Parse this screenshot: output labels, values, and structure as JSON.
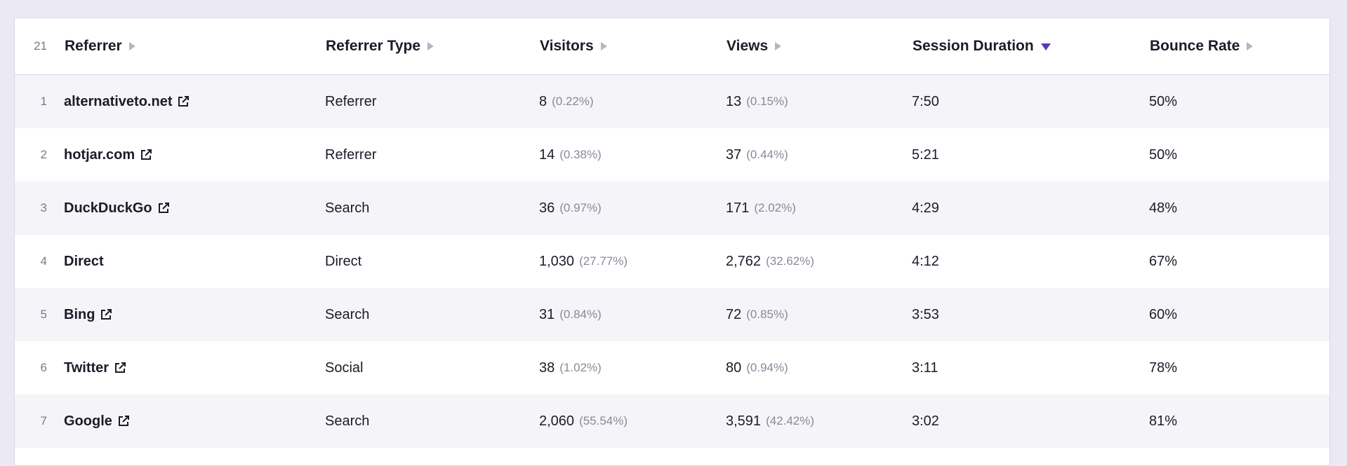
{
  "table": {
    "row_count": "21",
    "columns": [
      "Referrer",
      "Referrer Type",
      "Visitors",
      "Views",
      "Session Duration",
      "Bounce Rate"
    ],
    "sorted_by": "Session Duration",
    "rows": [
      {
        "index": "1",
        "referrer": "alternativeto.net",
        "external_link": true,
        "type": "Referrer",
        "visitors": "8",
        "visitors_pct": "(0.22%)",
        "views": "13",
        "views_pct": "(0.15%)",
        "duration": "7:50",
        "bounce": "50%"
      },
      {
        "index": "2",
        "referrer": "hotjar.com",
        "external_link": true,
        "type": "Referrer",
        "visitors": "14",
        "visitors_pct": "(0.38%)",
        "views": "37",
        "views_pct": "(0.44%)",
        "duration": "5:21",
        "bounce": "50%"
      },
      {
        "index": "3",
        "referrer": "DuckDuckGo",
        "external_link": true,
        "type": "Search",
        "visitors": "36",
        "visitors_pct": "(0.97%)",
        "views": "171",
        "views_pct": "(2.02%)",
        "duration": "4:29",
        "bounce": "48%"
      },
      {
        "index": "4",
        "referrer": "Direct",
        "external_link": false,
        "type": "Direct",
        "visitors": "1,030",
        "visitors_pct": "(27.77%)",
        "views": "2,762",
        "views_pct": "(32.62%)",
        "duration": "4:12",
        "bounce": "67%"
      },
      {
        "index": "5",
        "referrer": "Bing",
        "external_link": true,
        "type": "Search",
        "visitors": "31",
        "visitors_pct": "(0.84%)",
        "views": "72",
        "views_pct": "(0.85%)",
        "duration": "3:53",
        "bounce": "60%"
      },
      {
        "index": "6",
        "referrer": "Twitter",
        "external_link": true,
        "type": "Social",
        "visitors": "38",
        "visitors_pct": "(1.02%)",
        "views": "80",
        "views_pct": "(0.94%)",
        "duration": "3:11",
        "bounce": "78%"
      },
      {
        "index": "7",
        "referrer": "Google",
        "external_link": true,
        "type": "Search",
        "visitors": "2,060",
        "visitors_pct": "(55.54%)",
        "views": "3,591",
        "views_pct": "(42.42%)",
        "duration": "3:02",
        "bounce": "81%"
      }
    ]
  },
  "colors": {
    "accent": "#5b39b6",
    "page_bg": "#ebe9f4",
    "row_alt": "#f5f4f9"
  },
  "icons": {
    "external_link": "external-link-icon",
    "sort": "sort-arrow-icon"
  }
}
